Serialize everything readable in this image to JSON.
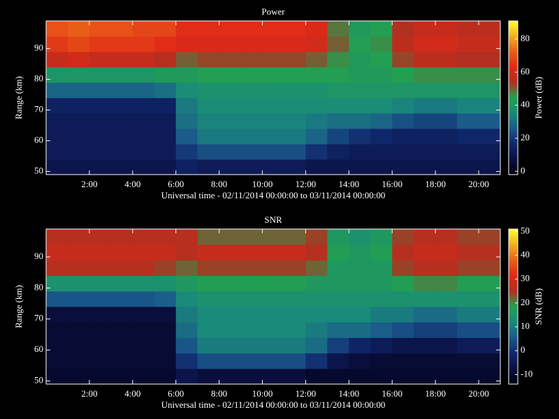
{
  "chart_data": [
    {
      "type": "heatmap",
      "title": "Power",
      "y_label": "Range (km)",
      "x_label": "Universal time - 02/11/2014 00:00:00 to 03/11/2014 00:00:00",
      "colorbar_label": "Power (dB)",
      "x": [
        0.5,
        1.5,
        2.5,
        3.5,
        4.5,
        5.5,
        6.5,
        7.5,
        8.5,
        9.5,
        10.5,
        11.5,
        12.5,
        13.5,
        14.5,
        15.5,
        16.5,
        17.5,
        18.5,
        19.5,
        20.5
      ],
      "y": [
        51.5,
        56.5,
        61.5,
        66.5,
        71.5,
        76.5,
        81.5,
        86.5,
        91.5,
        96.5
      ],
      "values": [
        [
          10,
          12,
          12,
          12,
          14,
          28,
          40,
          58,
          66,
          70
        ],
        [
          10,
          12,
          12,
          12,
          14,
          28,
          40,
          60,
          68,
          72
        ],
        [
          10,
          12,
          12,
          12,
          14,
          28,
          40,
          58,
          66,
          70
        ],
        [
          10,
          12,
          12,
          12,
          14,
          28,
          40,
          58,
          66,
          70
        ],
        [
          10,
          12,
          12,
          12,
          14,
          28,
          40,
          58,
          66,
          68
        ],
        [
          10,
          12,
          12,
          12,
          14,
          30,
          42,
          55,
          64,
          68
        ],
        [
          14,
          20,
          26,
          30,
          32,
          36,
          42,
          50,
          62,
          64
        ],
        [
          12,
          24,
          32,
          34,
          36,
          38,
          44,
          52,
          62,
          64
        ],
        [
          12,
          24,
          32,
          34,
          36,
          38,
          44,
          52,
          62,
          64
        ],
        [
          12,
          24,
          32,
          34,
          36,
          38,
          44,
          52,
          62,
          64
        ],
        [
          12,
          24,
          32,
          34,
          36,
          38,
          44,
          52,
          62,
          64
        ],
        [
          12,
          24,
          32,
          34,
          36,
          38,
          44,
          52,
          62,
          64
        ],
        [
          10,
          18,
          28,
          32,
          36,
          38,
          44,
          50,
          60,
          62
        ],
        [
          10,
          14,
          22,
          30,
          36,
          40,
          44,
          46,
          50,
          48
        ],
        [
          10,
          12,
          18,
          30,
          36,
          40,
          42,
          42,
          44,
          42
        ],
        [
          10,
          12,
          16,
          28,
          36,
          40,
          42,
          44,
          46,
          44
        ],
        [
          10,
          12,
          14,
          24,
          34,
          40,
          44,
          52,
          56,
          54
        ],
        [
          10,
          12,
          14,
          22,
          32,
          40,
          46,
          56,
          60,
          58
        ],
        [
          10,
          12,
          14,
          22,
          32,
          40,
          46,
          56,
          60,
          58
        ],
        [
          10,
          12,
          16,
          26,
          34,
          40,
          46,
          54,
          58,
          56
        ],
        [
          10,
          12,
          16,
          26,
          34,
          40,
          46,
          54,
          58,
          56
        ]
      ],
      "xlim": [
        0,
        21
      ],
      "ylim": [
        49,
        99
      ],
      "clim": [
        -2,
        91
      ],
      "xticks": [
        {
          "value": 2,
          "label": "2:00"
        },
        {
          "value": 4,
          "label": "4:00"
        },
        {
          "value": 6,
          "label": "6:00"
        },
        {
          "value": 8,
          "label": "8:00"
        },
        {
          "value": 10,
          "label": "10:00"
        },
        {
          "value": 12,
          "label": "12:00"
        },
        {
          "value": 14,
          "label": "14:00"
        },
        {
          "value": 16,
          "label": "16:00"
        },
        {
          "value": 18,
          "label": "18:00"
        },
        {
          "value": 20,
          "label": "20:00"
        }
      ],
      "yticks": [
        50,
        60,
        70,
        80,
        90
      ],
      "cticks": [
        0,
        20,
        40,
        60,
        80
      ],
      "colormap": [
        "#000010",
        "#0a0f40",
        "#10286e",
        "#1a5a8a",
        "#1a8a7a",
        "#22a050",
        "#b03020",
        "#e02818",
        "#e86018",
        "#f0b020",
        "#ffff30"
      ]
    },
    {
      "type": "heatmap",
      "title": "SNR",
      "y_label": "Range (km)",
      "x_label": "Universal time - 02/11/2014 00:00:00 to 03/11/2014 00:00:00",
      "colorbar_label": "SNR (dB)",
      "x": [
        0.5,
        1.5,
        2.5,
        3.5,
        4.5,
        5.5,
        6.5,
        7.5,
        8.5,
        9.5,
        10.5,
        11.5,
        12.5,
        13.5,
        14.5,
        15.5,
        16.5,
        17.5,
        18.5,
        19.5,
        20.5
      ],
      "y": [
        51.5,
        56.5,
        61.5,
        66.5,
        71.5,
        76.5,
        81.5,
        86.5,
        91.5,
        96.5
      ],
      "values": [
        [
          -10,
          -9,
          -9,
          -9,
          -8,
          5,
          14,
          26,
          28,
          26
        ],
        [
          -10,
          -9,
          -9,
          -9,
          -8,
          5,
          14,
          26,
          28,
          26
        ],
        [
          -10,
          -9,
          -9,
          -9,
          -8,
          5,
          14,
          26,
          28,
          26
        ],
        [
          -10,
          -9,
          -9,
          -9,
          -8,
          5,
          14,
          26,
          28,
          26
        ],
        [
          -10,
          -9,
          -9,
          -9,
          -8,
          5,
          14,
          26,
          28,
          26
        ],
        [
          -10,
          -9,
          -9,
          -9,
          -8,
          6,
          14,
          24,
          28,
          26
        ],
        [
          -6,
          0,
          5,
          8,
          10,
          12,
          16,
          22,
          26,
          26
        ],
        [
          -8,
          4,
          10,
          12,
          12,
          14,
          18,
          24,
          28,
          22
        ],
        [
          -8,
          4,
          10,
          12,
          12,
          14,
          18,
          24,
          28,
          22
        ],
        [
          -8,
          4,
          10,
          12,
          12,
          14,
          18,
          24,
          28,
          22
        ],
        [
          -8,
          4,
          10,
          12,
          12,
          14,
          18,
          24,
          28,
          22
        ],
        [
          -8,
          4,
          10,
          12,
          12,
          14,
          18,
          24,
          28,
          22
        ],
        [
          -10,
          0,
          8,
          10,
          12,
          14,
          16,
          22,
          26,
          24
        ],
        [
          -10,
          -6,
          2,
          8,
          12,
          14,
          16,
          16,
          18,
          16
        ],
        [
          -10,
          -8,
          -2,
          8,
          12,
          14,
          16,
          16,
          16,
          14
        ],
        [
          -10,
          -9,
          -4,
          6,
          10,
          14,
          16,
          16,
          18,
          16
        ],
        [
          -10,
          -9,
          -6,
          4,
          10,
          14,
          18,
          24,
          26,
          24
        ],
        [
          -10,
          -9,
          -6,
          2,
          8,
          14,
          20,
          26,
          28,
          26
        ],
        [
          -10,
          -9,
          -6,
          2,
          8,
          14,
          20,
          26,
          28,
          26
        ],
        [
          -10,
          -9,
          -4,
          4,
          10,
          14,
          18,
          24,
          26,
          24
        ],
        [
          -10,
          -9,
          -4,
          4,
          10,
          14,
          18,
          24,
          26,
          24
        ]
      ],
      "xlim": [
        0,
        21
      ],
      "ylim": [
        49,
        99
      ],
      "clim": [
        -14,
        51
      ],
      "xticks": [
        {
          "value": 2,
          "label": "2:00"
        },
        {
          "value": 4,
          "label": "4:00"
        },
        {
          "value": 6,
          "label": "6:00"
        },
        {
          "value": 8,
          "label": "8:00"
        },
        {
          "value": 10,
          "label": "10:00"
        },
        {
          "value": 12,
          "label": "12:00"
        },
        {
          "value": 14,
          "label": "14:00"
        },
        {
          "value": 16,
          "label": "16:00"
        },
        {
          "value": 18,
          "label": "18:00"
        },
        {
          "value": 20,
          "label": "20:00"
        }
      ],
      "yticks": [
        50,
        60,
        70,
        80,
        90
      ],
      "cticks": [
        -10,
        0,
        10,
        20,
        30,
        40,
        50
      ],
      "colormap": [
        "#000010",
        "#0a0f40",
        "#10286e",
        "#1a5a8a",
        "#1a8a7a",
        "#22a050",
        "#b03020",
        "#e02818",
        "#e86018",
        "#f0b020",
        "#ffff30"
      ]
    }
  ]
}
